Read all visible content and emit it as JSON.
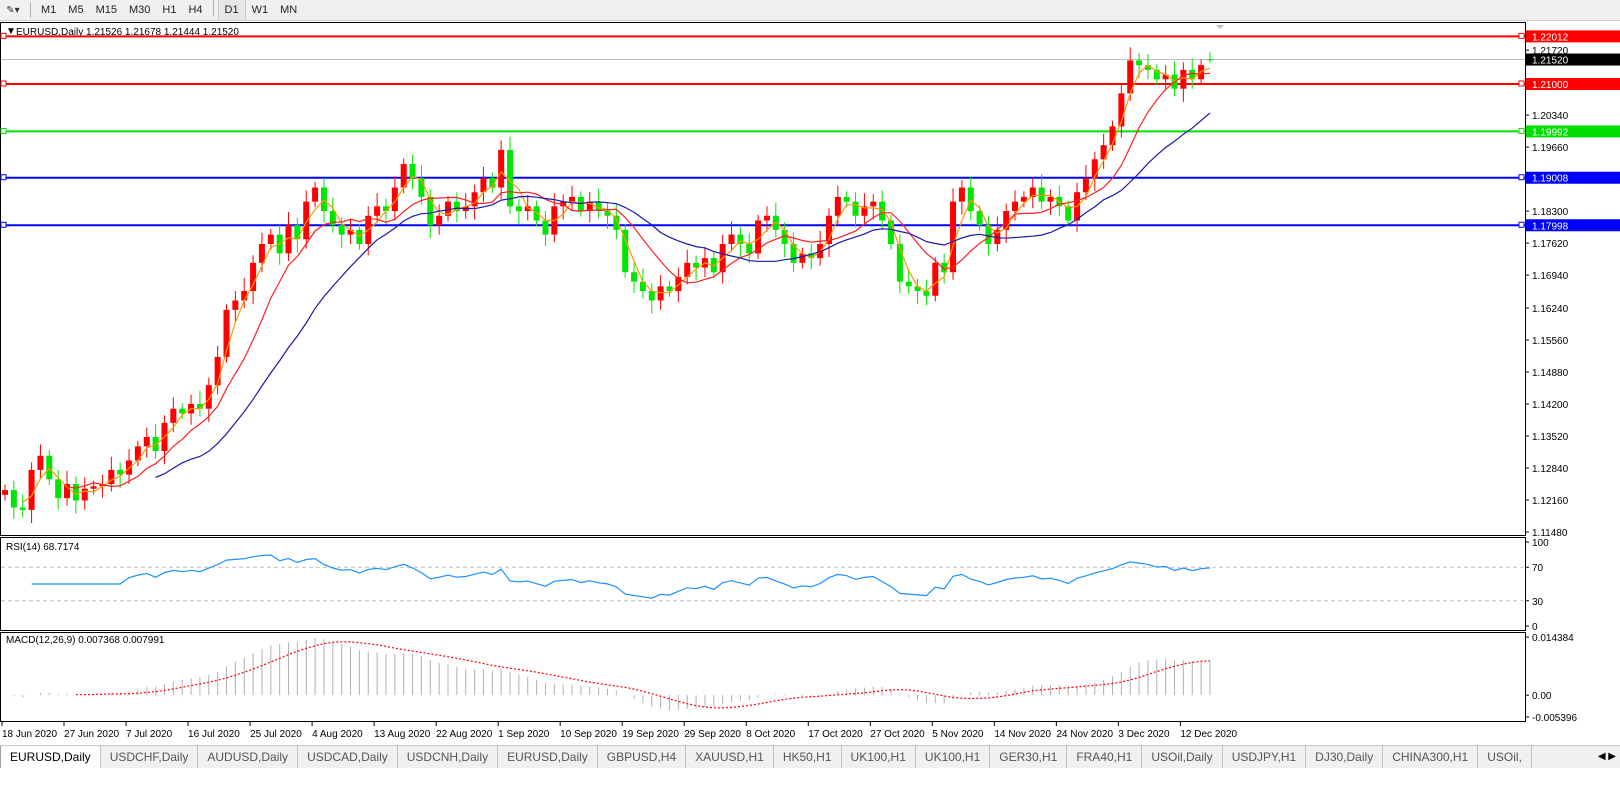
{
  "toolbar": {
    "timeframes": [
      "M1",
      "M5",
      "M15",
      "M30",
      "H1",
      "H4",
      "D1",
      "W1",
      "MN"
    ],
    "active": "D1"
  },
  "chart": {
    "header": "EURUSD,Daily  1.21526 1.21678 1.21444 1.21520",
    "symbol": "EURUSD",
    "timeframe": "Daily",
    "last_bar": {
      "open": 1.21526,
      "high": 1.21678,
      "low": 1.21444,
      "close": 1.2152
    },
    "price_axis_labels": [
      "1.21720",
      "1.20340",
      "1.19660",
      "1.18300",
      "1.17620",
      "1.16940",
      "1.16240",
      "1.15560",
      "1.14880",
      "1.14200",
      "1.13520",
      "1.12840",
      "1.12160",
      "1.11480"
    ],
    "current_price_label": "1.21520",
    "levels": [
      {
        "price": 1.22012,
        "label": "1.22012",
        "color": "#ff0000"
      },
      {
        "price": 1.21,
        "label": "1.21000",
        "color": "#ff0000"
      },
      {
        "price": 1.19992,
        "label": "1.19992",
        "color": "#00e000"
      },
      {
        "price": 1.19008,
        "label": "1.19008",
        "color": "#0000ff"
      },
      {
        "price": 1.17998,
        "label": "1.17998",
        "color": "#0000ff"
      }
    ],
    "colors": {
      "bull": "#ff0000",
      "bear": "#00e600",
      "ma_fast": "#ff9900",
      "ma_mid": "#ff2020",
      "ma_slow": "#1a1aa8",
      "rsi": "#1e90ff",
      "macd_hist": "#b0b0b0",
      "macd_signal": "#ff0000"
    }
  },
  "chart_data": {
    "type": "candlestick",
    "price_range": [
      1.1142,
      1.2255
    ],
    "closes": [
      1.1237,
      1.12,
      1.1195,
      1.128,
      1.131,
      1.126,
      1.122,
      1.125,
      1.1215,
      1.124,
      1.1245,
      1.125,
      1.128,
      1.127,
      1.13,
      1.133,
      1.135,
      1.132,
      1.138,
      1.141,
      1.14,
      1.142,
      1.141,
      1.146,
      1.152,
      1.162,
      1.164,
      1.166,
      1.172,
      1.176,
      1.178,
      1.174,
      1.18,
      1.177,
      1.185,
      1.188,
      1.183,
      1.18,
      1.178,
      1.179,
      1.176,
      1.182,
      1.184,
      1.183,
      1.188,
      1.193,
      1.19,
      1.186,
      1.18,
      1.182,
      1.185,
      1.183,
      1.184,
      1.187,
      1.19,
      1.188,
      1.196,
      1.184,
      1.183,
      1.184,
      1.181,
      1.178,
      1.184,
      1.185,
      1.186,
      1.183,
      1.185,
      1.183,
      1.182,
      1.179,
      1.17,
      1.168,
      1.166,
      1.164,
      1.167,
      1.166,
      1.169,
      1.172,
      1.171,
      1.173,
      1.17,
      1.176,
      1.178,
      1.176,
      1.174,
      1.181,
      1.182,
      1.179,
      1.176,
      1.172,
      1.174,
      1.173,
      1.176,
      1.182,
      1.186,
      1.185,
      1.182,
      1.184,
      1.185,
      1.181,
      1.176,
      1.168,
      1.167,
      1.166,
      1.165,
      1.172,
      1.17,
      1.185,
      1.188,
      1.183,
      1.18,
      1.176,
      1.179,
      1.183,
      1.185,
      1.186,
      1.188,
      1.185,
      1.186,
      1.184,
      1.181,
      1.187,
      1.19,
      1.194,
      1.197,
      1.201,
      1.208,
      1.215,
      1.214,
      1.213,
      1.211,
      1.212,
      1.209,
      1.213,
      1.211,
      1.214,
      1.2152
    ],
    "date_labels": [
      "18 Jun 2020",
      "27 Jun 2020",
      "7 Jul 2020",
      "16 Jul 2020",
      "25 Jul 2020",
      "4 Aug 2020",
      "13 Aug 2020",
      "22 Aug 2020",
      "1 Sep 2020",
      "10 Sep 2020",
      "19 Sep 2020",
      "29 Sep 2020",
      "8 Oct 2020",
      "17 Oct 2020",
      "27 Oct 2020",
      "5 Nov 2020",
      "14 Nov 2020",
      "24 Nov 2020",
      "3 Dec 2020",
      "12 Dec 2020"
    ]
  },
  "rsi": {
    "label": "RSI(14) 68.7174",
    "axis": [
      "100",
      "70",
      "30",
      "0"
    ]
  },
  "macd": {
    "label": "MACD(12,26,9) 0.007368 0.007991",
    "axis": [
      "0.014384",
      "0.00",
      "-0.005396"
    ],
    "range": [
      -0.005396,
      0.014384
    ]
  },
  "tabs": [
    "EURUSD,Daily",
    "USDCHF,Daily",
    "AUDUSD,Daily",
    "USDCAD,Daily",
    "USDCNH,Daily",
    "EURUSD,Daily",
    "GBPUSD,H4",
    "XAUUSD,H1",
    "HK50,H1",
    "UK100,H1",
    "UK100,H1",
    "GER30,H1",
    "FRA40,H1",
    "USOil,Daily",
    "USDJPY,H1",
    "DJ30,Daily",
    "CHINA300,H1",
    "USOil,"
  ],
  "active_tab": 0
}
